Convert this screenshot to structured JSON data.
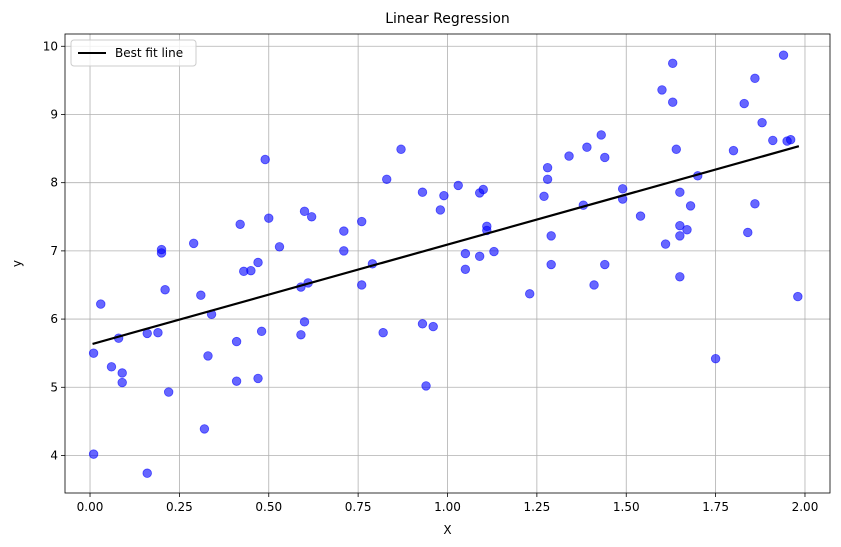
{
  "chart_data": {
    "type": "scatter",
    "title": "Linear Regression",
    "xlabel": "X",
    "ylabel": "y",
    "xlim": [
      -0.07,
      2.07
    ],
    "ylim": [
      3.45,
      10.18
    ],
    "xticks": [
      0.0,
      0.25,
      0.5,
      0.75,
      1.0,
      1.25,
      1.5,
      1.75,
      2.0
    ],
    "xtick_labels": [
      "0.00",
      "0.25",
      "0.50",
      "0.75",
      "1.00",
      "1.25",
      "1.50",
      "1.75",
      "2.00"
    ],
    "yticks": [
      4,
      5,
      6,
      7,
      8,
      9,
      10
    ],
    "ytick_labels": [
      "4",
      "5",
      "6",
      "7",
      "8",
      "9",
      "10"
    ],
    "grid": true,
    "legend_position": "top-left",
    "colors": {
      "points": "#0000ff",
      "line": "#000000",
      "grid": "#b0b0b0"
    },
    "series": [
      {
        "kind": "scatter",
        "points": [
          [
            0.01,
            4.02
          ],
          [
            0.01,
            5.5
          ],
          [
            0.03,
            6.22
          ],
          [
            0.06,
            5.3
          ],
          [
            0.08,
            5.72
          ],
          [
            0.09,
            5.21
          ],
          [
            0.09,
            5.07
          ],
          [
            0.16,
            3.74
          ],
          [
            0.16,
            5.79
          ],
          [
            0.19,
            5.8
          ],
          [
            0.2,
            6.97
          ],
          [
            0.2,
            7.02
          ],
          [
            0.21,
            6.43
          ],
          [
            0.22,
            4.93
          ],
          [
            0.29,
            7.11
          ],
          [
            0.31,
            6.35
          ],
          [
            0.32,
            4.39
          ],
          [
            0.33,
            5.46
          ],
          [
            0.34,
            6.07
          ],
          [
            0.41,
            5.67
          ],
          [
            0.41,
            5.09
          ],
          [
            0.42,
            7.39
          ],
          [
            0.43,
            6.7
          ],
          [
            0.45,
            6.71
          ],
          [
            0.47,
            5.13
          ],
          [
            0.47,
            6.83
          ],
          [
            0.48,
            5.82
          ],
          [
            0.49,
            8.34
          ],
          [
            0.5,
            7.48
          ],
          [
            0.53,
            7.06
          ],
          [
            0.59,
            5.77
          ],
          [
            0.59,
            6.47
          ],
          [
            0.6,
            7.58
          ],
          [
            0.6,
            5.96
          ],
          [
            0.61,
            6.53
          ],
          [
            0.62,
            7.5
          ],
          [
            0.71,
            7.0
          ],
          [
            0.71,
            7.29
          ],
          [
            0.76,
            7.43
          ],
          [
            0.76,
            6.5
          ],
          [
            0.79,
            6.81
          ],
          [
            0.82,
            5.8
          ],
          [
            0.83,
            8.05
          ],
          [
            0.87,
            8.49
          ],
          [
            0.93,
            7.86
          ],
          [
            0.93,
            5.93
          ],
          [
            0.94,
            5.02
          ],
          [
            0.96,
            5.89
          ],
          [
            0.98,
            7.6
          ],
          [
            0.99,
            7.81
          ],
          [
            1.03,
            7.96
          ],
          [
            1.05,
            6.96
          ],
          [
            1.05,
            6.73
          ],
          [
            1.09,
            7.85
          ],
          [
            1.09,
            6.92
          ],
          [
            1.1,
            7.9
          ],
          [
            1.11,
            7.36
          ],
          [
            1.11,
            7.3
          ],
          [
            1.13,
            6.99
          ],
          [
            1.23,
            6.37
          ],
          [
            1.27,
            7.8
          ],
          [
            1.28,
            8.22
          ],
          [
            1.28,
            8.05
          ],
          [
            1.29,
            6.8
          ],
          [
            1.29,
            7.22
          ],
          [
            1.34,
            8.39
          ],
          [
            1.38,
            7.67
          ],
          [
            1.39,
            8.52
          ],
          [
            1.41,
            6.5
          ],
          [
            1.43,
            8.7
          ],
          [
            1.44,
            8.37
          ],
          [
            1.44,
            6.8
          ],
          [
            1.49,
            7.91
          ],
          [
            1.49,
            7.76
          ],
          [
            1.54,
            7.51
          ],
          [
            1.6,
            9.36
          ],
          [
            1.61,
            7.1
          ],
          [
            1.63,
            9.18
          ],
          [
            1.63,
            9.75
          ],
          [
            1.64,
            8.49
          ],
          [
            1.65,
            7.86
          ],
          [
            1.65,
            7.37
          ],
          [
            1.65,
            7.22
          ],
          [
            1.65,
            6.62
          ],
          [
            1.67,
            7.31
          ],
          [
            1.68,
            7.66
          ],
          [
            1.7,
            8.1
          ],
          [
            1.75,
            5.42
          ],
          [
            1.8,
            8.47
          ],
          [
            1.83,
            9.16
          ],
          [
            1.84,
            7.27
          ],
          [
            1.86,
            9.53
          ],
          [
            1.86,
            7.69
          ],
          [
            1.88,
            8.88
          ],
          [
            1.91,
            8.62
          ],
          [
            1.94,
            9.87
          ],
          [
            1.95,
            8.61
          ],
          [
            1.96,
            8.63
          ],
          [
            1.98,
            6.33
          ]
        ]
      },
      {
        "kind": "line",
        "name": "Best fit line",
        "points": [
          [
            0.01,
            5.64
          ],
          [
            1.98,
            8.53
          ]
        ]
      }
    ]
  }
}
